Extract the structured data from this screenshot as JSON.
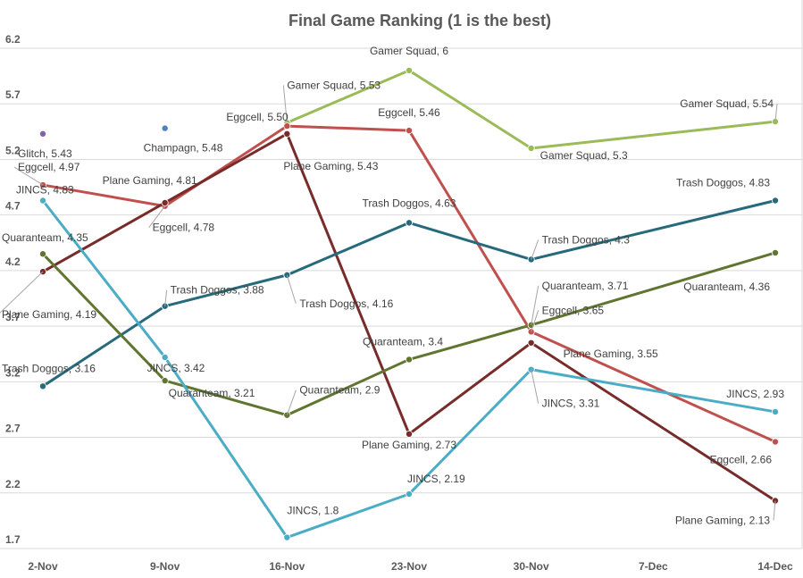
{
  "chart_data": {
    "type": "line",
    "title": "Final Game Ranking (1 is the best)",
    "xlabel": "",
    "ylabel": "",
    "categories": [
      "2-Nov",
      "9-Nov",
      "16-Nov",
      "23-Nov",
      "30-Nov",
      "7-Dec",
      "14-Dec"
    ],
    "y_ticks": [
      "1.7",
      "2.2",
      "2.7",
      "3.2",
      "3.7",
      "4.2",
      "4.7",
      "5.2",
      "5.7",
      "6.2"
    ],
    "ylim": [
      1.7,
      6.2
    ],
    "grid": true,
    "legend": "none",
    "series": [
      {
        "name": "Gamer Squad",
        "color": "#9bbb59",
        "points": [
          {
            "x": "16-Nov",
            "y": 5.53,
            "label": "Gamer Squad, 5.53"
          },
          {
            "x": "23-Nov",
            "y": 6,
            "label": "Gamer Squad, 6"
          },
          {
            "x": "30-Nov",
            "y": 5.3,
            "label": "Gamer Squad, 5.3"
          },
          {
            "x": "14-Dec",
            "y": 5.54,
            "label": "Gamer Squad, 5.54"
          }
        ]
      },
      {
        "name": "Eggcell",
        "color": "#c0504d",
        "points": [
          {
            "x": "2-Nov",
            "y": 4.97,
            "label": "Eggcell, 4.97"
          },
          {
            "x": "9-Nov",
            "y": 4.78,
            "label": "Eggcell, 4.78"
          },
          {
            "x": "16-Nov",
            "y": 5.5,
            "label": "Eggcell, 5.50"
          },
          {
            "x": "23-Nov",
            "y": 5.46,
            "label": "Eggcell, 5.46"
          },
          {
            "x": "30-Nov",
            "y": 3.65,
            "label": "Eggcell, 3.65"
          },
          {
            "x": "14-Dec",
            "y": 2.66,
            "label": "Eggcell, 2.66"
          }
        ]
      },
      {
        "name": "Plane Gaming",
        "color": "#772c2a",
        "points": [
          {
            "x": "2-Nov",
            "y": 4.19,
            "label": "Plane Gaming, 4.19"
          },
          {
            "x": "9-Nov",
            "y": 4.81,
            "label": "Plane Gaming, 4.81"
          },
          {
            "x": "16-Nov",
            "y": 5.43,
            "label": "Plane Gaming, 5.43"
          },
          {
            "x": "23-Nov",
            "y": 2.73,
            "label": "Plane Gaming, 2.73"
          },
          {
            "x": "30-Nov",
            "y": 3.55,
            "label": "Plane Gaming, 3.55"
          },
          {
            "x": "14-Dec",
            "y": 2.13,
            "label": "Plane Gaming, 2.13"
          }
        ]
      },
      {
        "name": "Trash Doggos",
        "color": "#276a7c",
        "points": [
          {
            "x": "2-Nov",
            "y": 3.16,
            "label": "Trash Doggos, 3.16"
          },
          {
            "x": "9-Nov",
            "y": 3.88,
            "label": "Trash Doggos, 3.88"
          },
          {
            "x": "16-Nov",
            "y": 4.16,
            "label": "Trash Doggos, 4.16"
          },
          {
            "x": "23-Nov",
            "y": 4.63,
            "label": "Trash Doggos, 4.63"
          },
          {
            "x": "30-Nov",
            "y": 4.3,
            "label": "Trash Doggos, 4.3"
          },
          {
            "x": "14-Dec",
            "y": 4.83,
            "label": "Trash Doggos, 4.83"
          }
        ]
      },
      {
        "name": "Quaranteam",
        "color": "#5f7530",
        "points": [
          {
            "x": "2-Nov",
            "y": 4.35,
            "label": "Quaranteam, 4.35"
          },
          {
            "x": "9-Nov",
            "y": 3.21,
            "label": "Quaranteam, 3.21"
          },
          {
            "x": "16-Nov",
            "y": 2.9,
            "label": "Quaranteam, 2.9"
          },
          {
            "x": "23-Nov",
            "y": 3.4,
            "label": "Quaranteam, 3.4"
          },
          {
            "x": "30-Nov",
            "y": 3.71,
            "label": "Quaranteam, 3.71"
          },
          {
            "x": "14-Dec",
            "y": 4.36,
            "label": "Quaranteam, 4.36"
          }
        ]
      },
      {
        "name": "JINCS",
        "color": "#4bacc6",
        "points": [
          {
            "x": "2-Nov",
            "y": 4.83,
            "label": "JINCS, 4.83"
          },
          {
            "x": "9-Nov",
            "y": 3.42,
            "label": "JINCS, 3.42"
          },
          {
            "x": "16-Nov",
            "y": 1.8,
            "label": "JINCS, 1.8"
          },
          {
            "x": "23-Nov",
            "y": 2.19,
            "label": "JINCS, 2.19"
          },
          {
            "x": "30-Nov",
            "y": 3.31,
            "label": "JINCS, 3.31"
          },
          {
            "x": "14-Dec",
            "y": 2.93,
            "label": "JINCS, 2.93"
          }
        ]
      },
      {
        "name": "Glitch",
        "color": "#8064a2",
        "points": [
          {
            "x": "2-Nov",
            "y": 5.43,
            "label": "Glitch, 5.43"
          }
        ]
      },
      {
        "name": "Champagn",
        "color": "#4f81bd",
        "points": [
          {
            "x": "9-Nov",
            "y": 5.48,
            "label": "Champagn, 5.48"
          }
        ]
      }
    ]
  }
}
